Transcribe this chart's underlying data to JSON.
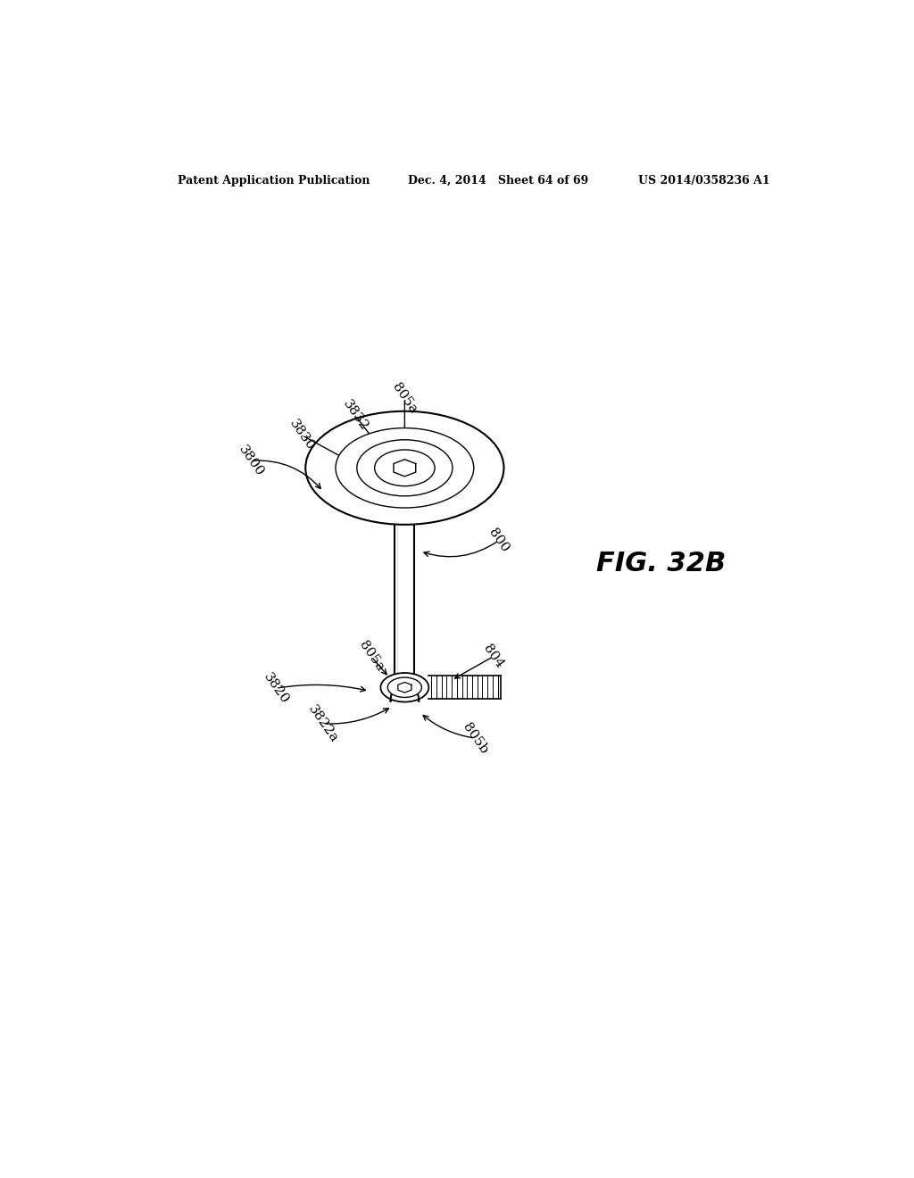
{
  "bg_color": "#ffffff",
  "line_color": "#000000",
  "header_left": "Patent Application Publication",
  "header_mid": "Dec. 4, 2014   Sheet 64 of 69",
  "header_right": "US 2014/0358236 A1",
  "fig_label": "FIG. 32B",
  "header_fontsize": 9,
  "label_fontsize": 11,
  "fig_label_fontsize": 22
}
